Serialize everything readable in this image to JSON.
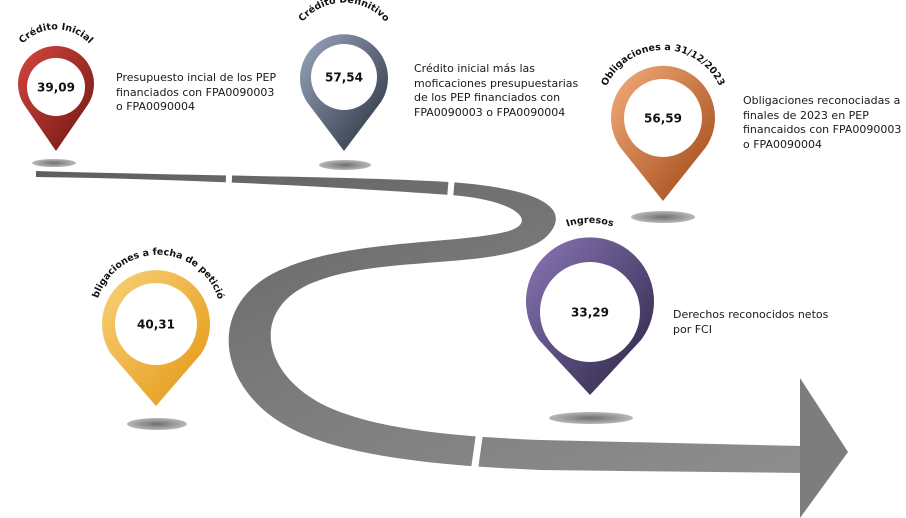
{
  "milestones": [
    {
      "id": "credito-inicial",
      "title": "Crédito Inicial",
      "value": "39,09",
      "color_dark": "#7a1a16",
      "color_light": "#c9403a",
      "description": [
        "Presupuesto incial de los PEP",
        "financiados con FPA0090003",
        "o FPA0090004"
      ]
    },
    {
      "id": "credito-definitivo",
      "title": "Crédito Definitivo",
      "value": "57,54",
      "color_dark": "#2c3443",
      "color_light": "#8f9db3",
      "description": [
        "Crédito inicial más las",
        "moficaciones presupuestarias",
        "de los PEP financiados con",
        "FPA0090003 o FPA0090004"
      ]
    },
    {
      "id": "obligaciones-31-12-2023",
      "title": "Obligaciones a 31/12/2023",
      "value": "56,59",
      "color_dark": "#a84b16",
      "color_light": "#f0a370",
      "description": [
        "Obligaciones reconociadas a",
        "finales de 2023 en PEP",
        "financaidos con FPA0090003",
        "o FPA0090004"
      ]
    },
    {
      "id": "obligaciones-fecha-peticion",
      "title": "Obligaciones a fecha de petición",
      "value": "40,31",
      "color_dark": "#e69a12",
      "color_light": "#f8cc6e",
      "description": []
    },
    {
      "id": "ingresos",
      "title": "Ingresos",
      "value": "33,29",
      "color_dark": "#2e2748",
      "color_light": "#7b68a8",
      "description": [
        "Derechos reconocidos netos",
        "por FCI"
      ]
    }
  ]
}
